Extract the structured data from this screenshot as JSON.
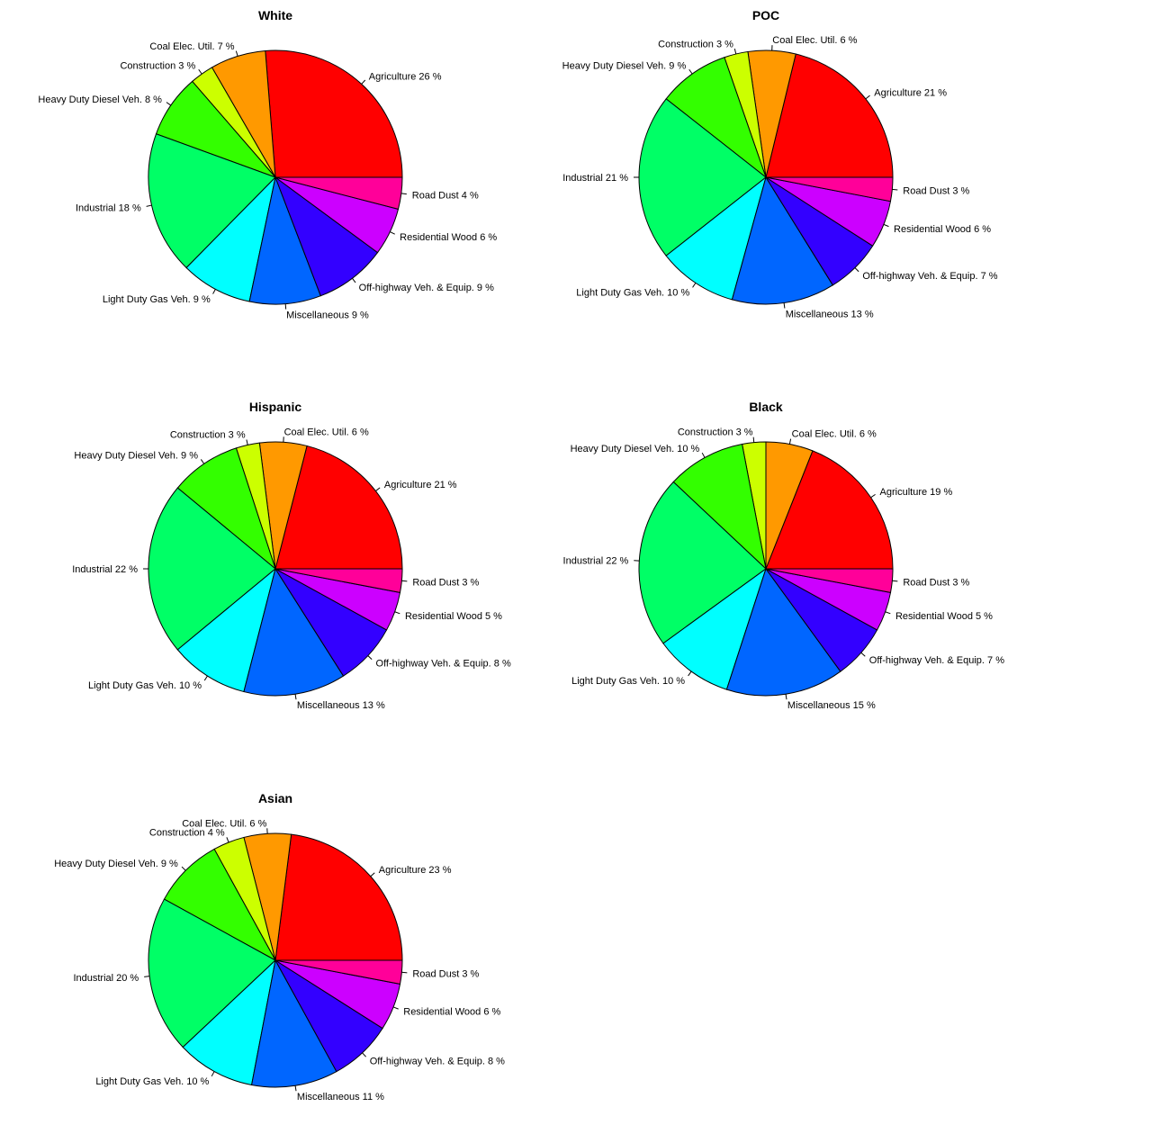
{
  "chart_data": [
    {
      "type": "pie",
      "title": "White",
      "start_angle_deg": 0,
      "direction": "counterclockwise",
      "slices": [
        {
          "label": "Agriculture 26 %",
          "value": 26,
          "color": "#FF0000"
        },
        {
          "label": "Coal Elec. Util. 7 %",
          "value": 7,
          "color": "#FF9900"
        },
        {
          "label": "Construction 3 %",
          "value": 3,
          "color": "#CCFF00"
        },
        {
          "label": "Heavy Duty Diesel Veh. 8 %",
          "value": 8,
          "color": "#33FF00"
        },
        {
          "label": "Industrial 18 %",
          "value": 18,
          "color": "#00FF66"
        },
        {
          "label": "Light Duty Gas Veh. 9 %",
          "value": 9,
          "color": "#00FFFF"
        },
        {
          "label": "Miscellaneous 9 %",
          "value": 9,
          "color": "#0066FF"
        },
        {
          "label": "Off-highway Veh. & Equip. 9 %",
          "value": 9,
          "color": "#3300FF"
        },
        {
          "label": "Residential Wood 6 %",
          "value": 6,
          "color": "#CC00FF"
        },
        {
          "label": "Road Dust 4 %",
          "value": 4,
          "color": "#FF0099"
        }
      ]
    },
    {
      "type": "pie",
      "title": "POC",
      "start_angle_deg": 0,
      "direction": "counterclockwise",
      "slices": [
        {
          "label": "Agriculture 21 %",
          "value": 21,
          "color": "#FF0000"
        },
        {
          "label": "Coal Elec. Util. 6 %",
          "value": 6,
          "color": "#FF9900"
        },
        {
          "label": "Construction 3 %",
          "value": 3,
          "color": "#CCFF00"
        },
        {
          "label": "Heavy Duty Diesel Veh. 9 %",
          "value": 9,
          "color": "#33FF00"
        },
        {
          "label": "Industrial 21 %",
          "value": 21,
          "color": "#00FF66"
        },
        {
          "label": "Light Duty Gas Veh. 10 %",
          "value": 10,
          "color": "#00FFFF"
        },
        {
          "label": "Miscellaneous 13 %",
          "value": 13,
          "color": "#0066FF"
        },
        {
          "label": "Off-highway Veh. & Equip. 7 %",
          "value": 7,
          "color": "#3300FF"
        },
        {
          "label": "Residential Wood 6 %",
          "value": 6,
          "color": "#CC00FF"
        },
        {
          "label": "Road Dust 3 %",
          "value": 3,
          "color": "#FF0099"
        }
      ]
    },
    {
      "type": "pie",
      "title": "Hispanic",
      "start_angle_deg": 0,
      "direction": "counterclockwise",
      "slices": [
        {
          "label": "Agriculture 21 %",
          "value": 21,
          "color": "#FF0000"
        },
        {
          "label": "Coal Elec. Util. 6 %",
          "value": 6,
          "color": "#FF9900"
        },
        {
          "label": "Construction 3 %",
          "value": 3,
          "color": "#CCFF00"
        },
        {
          "label": "Heavy Duty Diesel Veh. 9 %",
          "value": 9,
          "color": "#33FF00"
        },
        {
          "label": "Industrial 22 %",
          "value": 22,
          "color": "#00FF66"
        },
        {
          "label": "Light Duty Gas Veh. 10 %",
          "value": 10,
          "color": "#00FFFF"
        },
        {
          "label": "Miscellaneous 13 %",
          "value": 13,
          "color": "#0066FF"
        },
        {
          "label": "Off-highway Veh. & Equip. 8 %",
          "value": 8,
          "color": "#3300FF"
        },
        {
          "label": "Residential Wood 5 %",
          "value": 5,
          "color": "#CC00FF"
        },
        {
          "label": "Road Dust 3 %",
          "value": 3,
          "color": "#FF0099"
        }
      ]
    },
    {
      "type": "pie",
      "title": "Black",
      "start_angle_deg": 0,
      "direction": "counterclockwise",
      "slices": [
        {
          "label": "Agriculture 19 %",
          "value": 19,
          "color": "#FF0000"
        },
        {
          "label": "Coal Elec. Util. 6 %",
          "value": 6,
          "color": "#FF9900"
        },
        {
          "label": "Construction 3 %",
          "value": 3,
          "color": "#CCFF00"
        },
        {
          "label": "Heavy Duty Diesel Veh. 10 %",
          "value": 10,
          "color": "#33FF00"
        },
        {
          "label": "Industrial 22 %",
          "value": 22,
          "color": "#00FF66"
        },
        {
          "label": "Light Duty Gas Veh. 10 %",
          "value": 10,
          "color": "#00FFFF"
        },
        {
          "label": "Miscellaneous 15 %",
          "value": 15,
          "color": "#0066FF"
        },
        {
          "label": "Off-highway Veh. & Equip. 7 %",
          "value": 7,
          "color": "#3300FF"
        },
        {
          "label": "Residential Wood 5 %",
          "value": 5,
          "color": "#CC00FF"
        },
        {
          "label": "Road Dust 3 %",
          "value": 3,
          "color": "#FF0099"
        }
      ]
    },
    {
      "type": "pie",
      "title": "Asian",
      "start_angle_deg": 0,
      "direction": "counterclockwise",
      "slices": [
        {
          "label": "Agriculture 23 %",
          "value": 23,
          "color": "#FF0000"
        },
        {
          "label": "Coal Elec. Util. 6 %",
          "value": 6,
          "color": "#FF9900"
        },
        {
          "label": "Construction 4 %",
          "value": 4,
          "color": "#CCFF00"
        },
        {
          "label": "Heavy Duty Diesel Veh. 9 %",
          "value": 9,
          "color": "#33FF00"
        },
        {
          "label": "Industrial 20 %",
          "value": 20,
          "color": "#00FF66"
        },
        {
          "label": "Light Duty Gas Veh. 10 %",
          "value": 10,
          "color": "#00FFFF"
        },
        {
          "label": "Miscellaneous 11 %",
          "value": 11,
          "color": "#0066FF"
        },
        {
          "label": "Off-highway Veh. & Equip. 8 %",
          "value": 8,
          "color": "#3300FF"
        },
        {
          "label": "Residential Wood 6 %",
          "value": 6,
          "color": "#CC00FF"
        },
        {
          "label": "Road Dust 3 %",
          "value": 3,
          "color": "#FF0099"
        }
      ]
    }
  ]
}
